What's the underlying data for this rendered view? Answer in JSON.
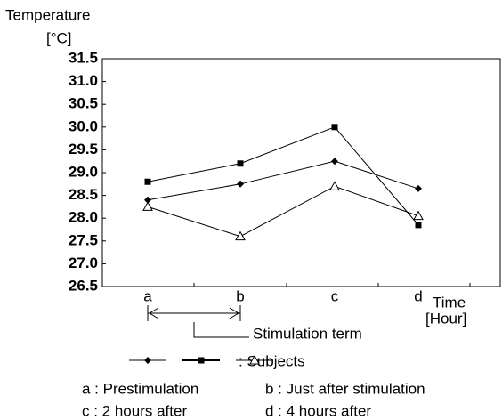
{
  "chart_data": {
    "type": "line",
    "y_label": "Temperature",
    "y_unit": "[°C]",
    "x_label": "Time",
    "x_unit": "[Hour]",
    "categories": [
      "a",
      "b",
      "c",
      "d"
    ],
    "series": [
      {
        "color": "#000000",
        "marker": "diamond",
        "values": [
          28.4,
          28.75,
          29.25,
          28.65
        ]
      },
      {
        "color": "#000000",
        "marker": "square",
        "values": [
          28.8,
          29.2,
          30.0,
          27.85
        ]
      },
      {
        "color": "#000000",
        "marker": "triangle",
        "values": [
          28.25,
          27.6,
          28.7,
          28.05
        ]
      }
    ],
    "ylim": [
      26.5,
      31.5
    ],
    "yticks": [
      26.5,
      {
        "value": 27,
        "label": "27.0"
      },
      27.5,
      {
        "value": 28,
        "label": "28.0"
      },
      28.5,
      {
        "value": 29,
        "label": "29.0"
      },
      29.5,
      {
        "value": 30,
        "label": "30.0"
      },
      30.5,
      {
        "value": 31,
        "label": "31.0"
      },
      31.5
    ],
    "annotation": "Stimulation term",
    "legend_label": ": Subjects",
    "notes": [
      "a : Prestimulation",
      "b : Just after stimulation",
      "c : 2 hours after",
      "d : 4 hours after"
    ]
  }
}
